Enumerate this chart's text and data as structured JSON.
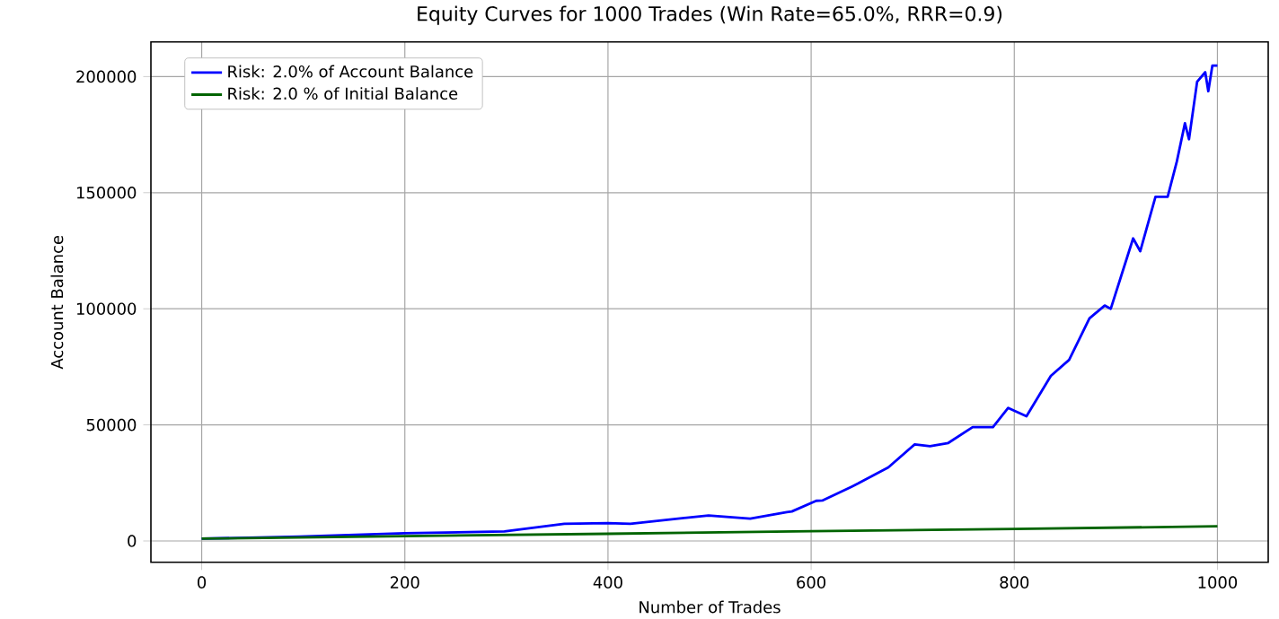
{
  "chart_data": {
    "type": "line",
    "title": "Equity Curves for 1000 Trades (Win Rate=65.0%, RRR=0.9)",
    "xlabel": "Number of Trades",
    "ylabel": "Account Balance",
    "xlim": [
      -50,
      1050
    ],
    "xticks": [
      0,
      200,
      400,
      600,
      800,
      1000
    ],
    "ylim": [
      -9200,
      214900
    ],
    "yticks": [
      0,
      50000,
      100000,
      150000,
      200000
    ],
    "grid": true,
    "legend": "top left",
    "line_style": "solid",
    "marker": "none",
    "series": [
      {
        "name": "Risk: 2.0% of Account Balance",
        "color": "#0000ff",
        "x": [
          0,
          96,
          200,
          298,
          357,
          400,
          422,
          499,
          540,
          576,
          581,
          605,
          611,
          640,
          646,
          676,
          702,
          717,
          735,
          759,
          779,
          794,
          812,
          836,
          854,
          874,
          889,
          895,
          905,
          917,
          924,
          939,
          951,
          960,
          968,
          972,
          980,
          988,
          991,
          995,
          1000
        ],
        "values": [
          1000,
          1900,
          3300,
          4100,
          7400,
          7700,
          7400,
          11000,
          9600,
          12400,
          12700,
          17300,
          17400,
          23400,
          24700,
          31700,
          41600,
          40800,
          42200,
          49000,
          49000,
          57300,
          53700,
          71100,
          78000,
          95900,
          101400,
          100000,
          113800,
          130300,
          124800,
          148200,
          148200,
          163400,
          179900,
          173000,
          197800,
          201900,
          193700,
          204700,
          204700
        ]
      },
      {
        "name": "Risk: 2.0 % of Initial Balance",
        "color": "#006400",
        "x": [
          0,
          200,
          400,
          600,
          800,
          1000
        ],
        "values": [
          1000,
          2100,
          3100,
          4200,
          5200,
          6300
        ]
      }
    ]
  }
}
